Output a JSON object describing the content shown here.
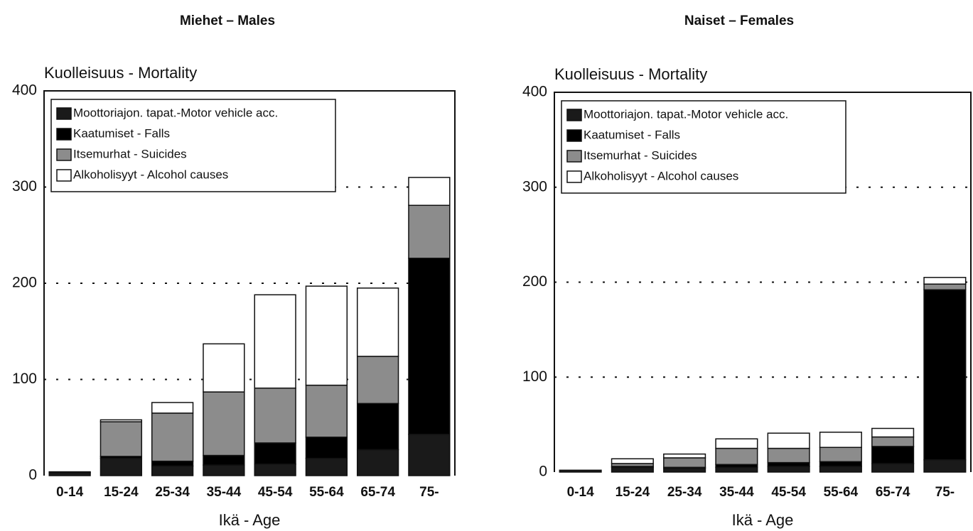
{
  "chart_data": [
    {
      "type": "bar",
      "title": "Miehet – Males",
      "ylabel": "Kuolleisuus - Mortality",
      "xlabel": "Ikä - Age",
      "categories": [
        "0-14",
        "15-24",
        "25-34",
        "35-44",
        "45-54",
        "55-64",
        "65-74",
        "75-"
      ],
      "series": [
        {
          "name": "Moottoriajon. tapat.-Motor vehicle acc.",
          "color": "#1a1a1a",
          "values": [
            3,
            18,
            10,
            11,
            12,
            18,
            27,
            43
          ]
        },
        {
          "name": "Kaatumiset - Falls",
          "color": "#000000",
          "values": [
            1,
            2,
            5,
            10,
            22,
            22,
            48,
            183
          ]
        },
        {
          "name": "Itsemurhat - Suicides",
          "color": "#8c8c8c",
          "values": [
            0,
            36,
            50,
            66,
            57,
            54,
            49,
            55
          ]
        },
        {
          "name": "Alkoholisyyt - Alcohol causes",
          "color": "#ffffff",
          "values": [
            0,
            2,
            11,
            50,
            97,
            103,
            71,
            29
          ]
        }
      ],
      "ylim": [
        0,
        400
      ],
      "yticks": [
        0,
        100,
        200,
        300,
        400
      ],
      "grid": true,
      "stacked": true,
      "legend": "upper left"
    },
    {
      "type": "bar",
      "title": "Naiset – Females",
      "ylabel": "Kuolleisuus - Mortality",
      "xlabel": "Ikä - Age",
      "categories": [
        "0-14",
        "15-24",
        "25-34",
        "35-44",
        "45-54",
        "55-64",
        "65-74",
        "75-"
      ],
      "series": [
        {
          "name": "Moottoriajon. tapat.-Motor vehicle acc.",
          "color": "#1a1a1a",
          "values": [
            2,
            5,
            4,
            5,
            6,
            6,
            9,
            13
          ]
        },
        {
          "name": "Kaatumiset - Falls",
          "color": "#000000",
          "values": [
            0,
            1,
            1,
            3,
            4,
            5,
            18,
            179
          ]
        },
        {
          "name": "Itsemurhat - Suicides",
          "color": "#8c8c8c",
          "values": [
            0,
            3,
            10,
            17,
            15,
            15,
            10,
            6
          ]
        },
        {
          "name": "Alkoholisyyt - Alcohol causes",
          "color": "#ffffff",
          "values": [
            0,
            5,
            4,
            10,
            16,
            16,
            9,
            7
          ]
        }
      ],
      "ylim": [
        0,
        400
      ],
      "yticks": [
        0,
        100,
        200,
        300,
        400
      ],
      "grid": true,
      "stacked": true,
      "legend": "upper left"
    }
  ]
}
